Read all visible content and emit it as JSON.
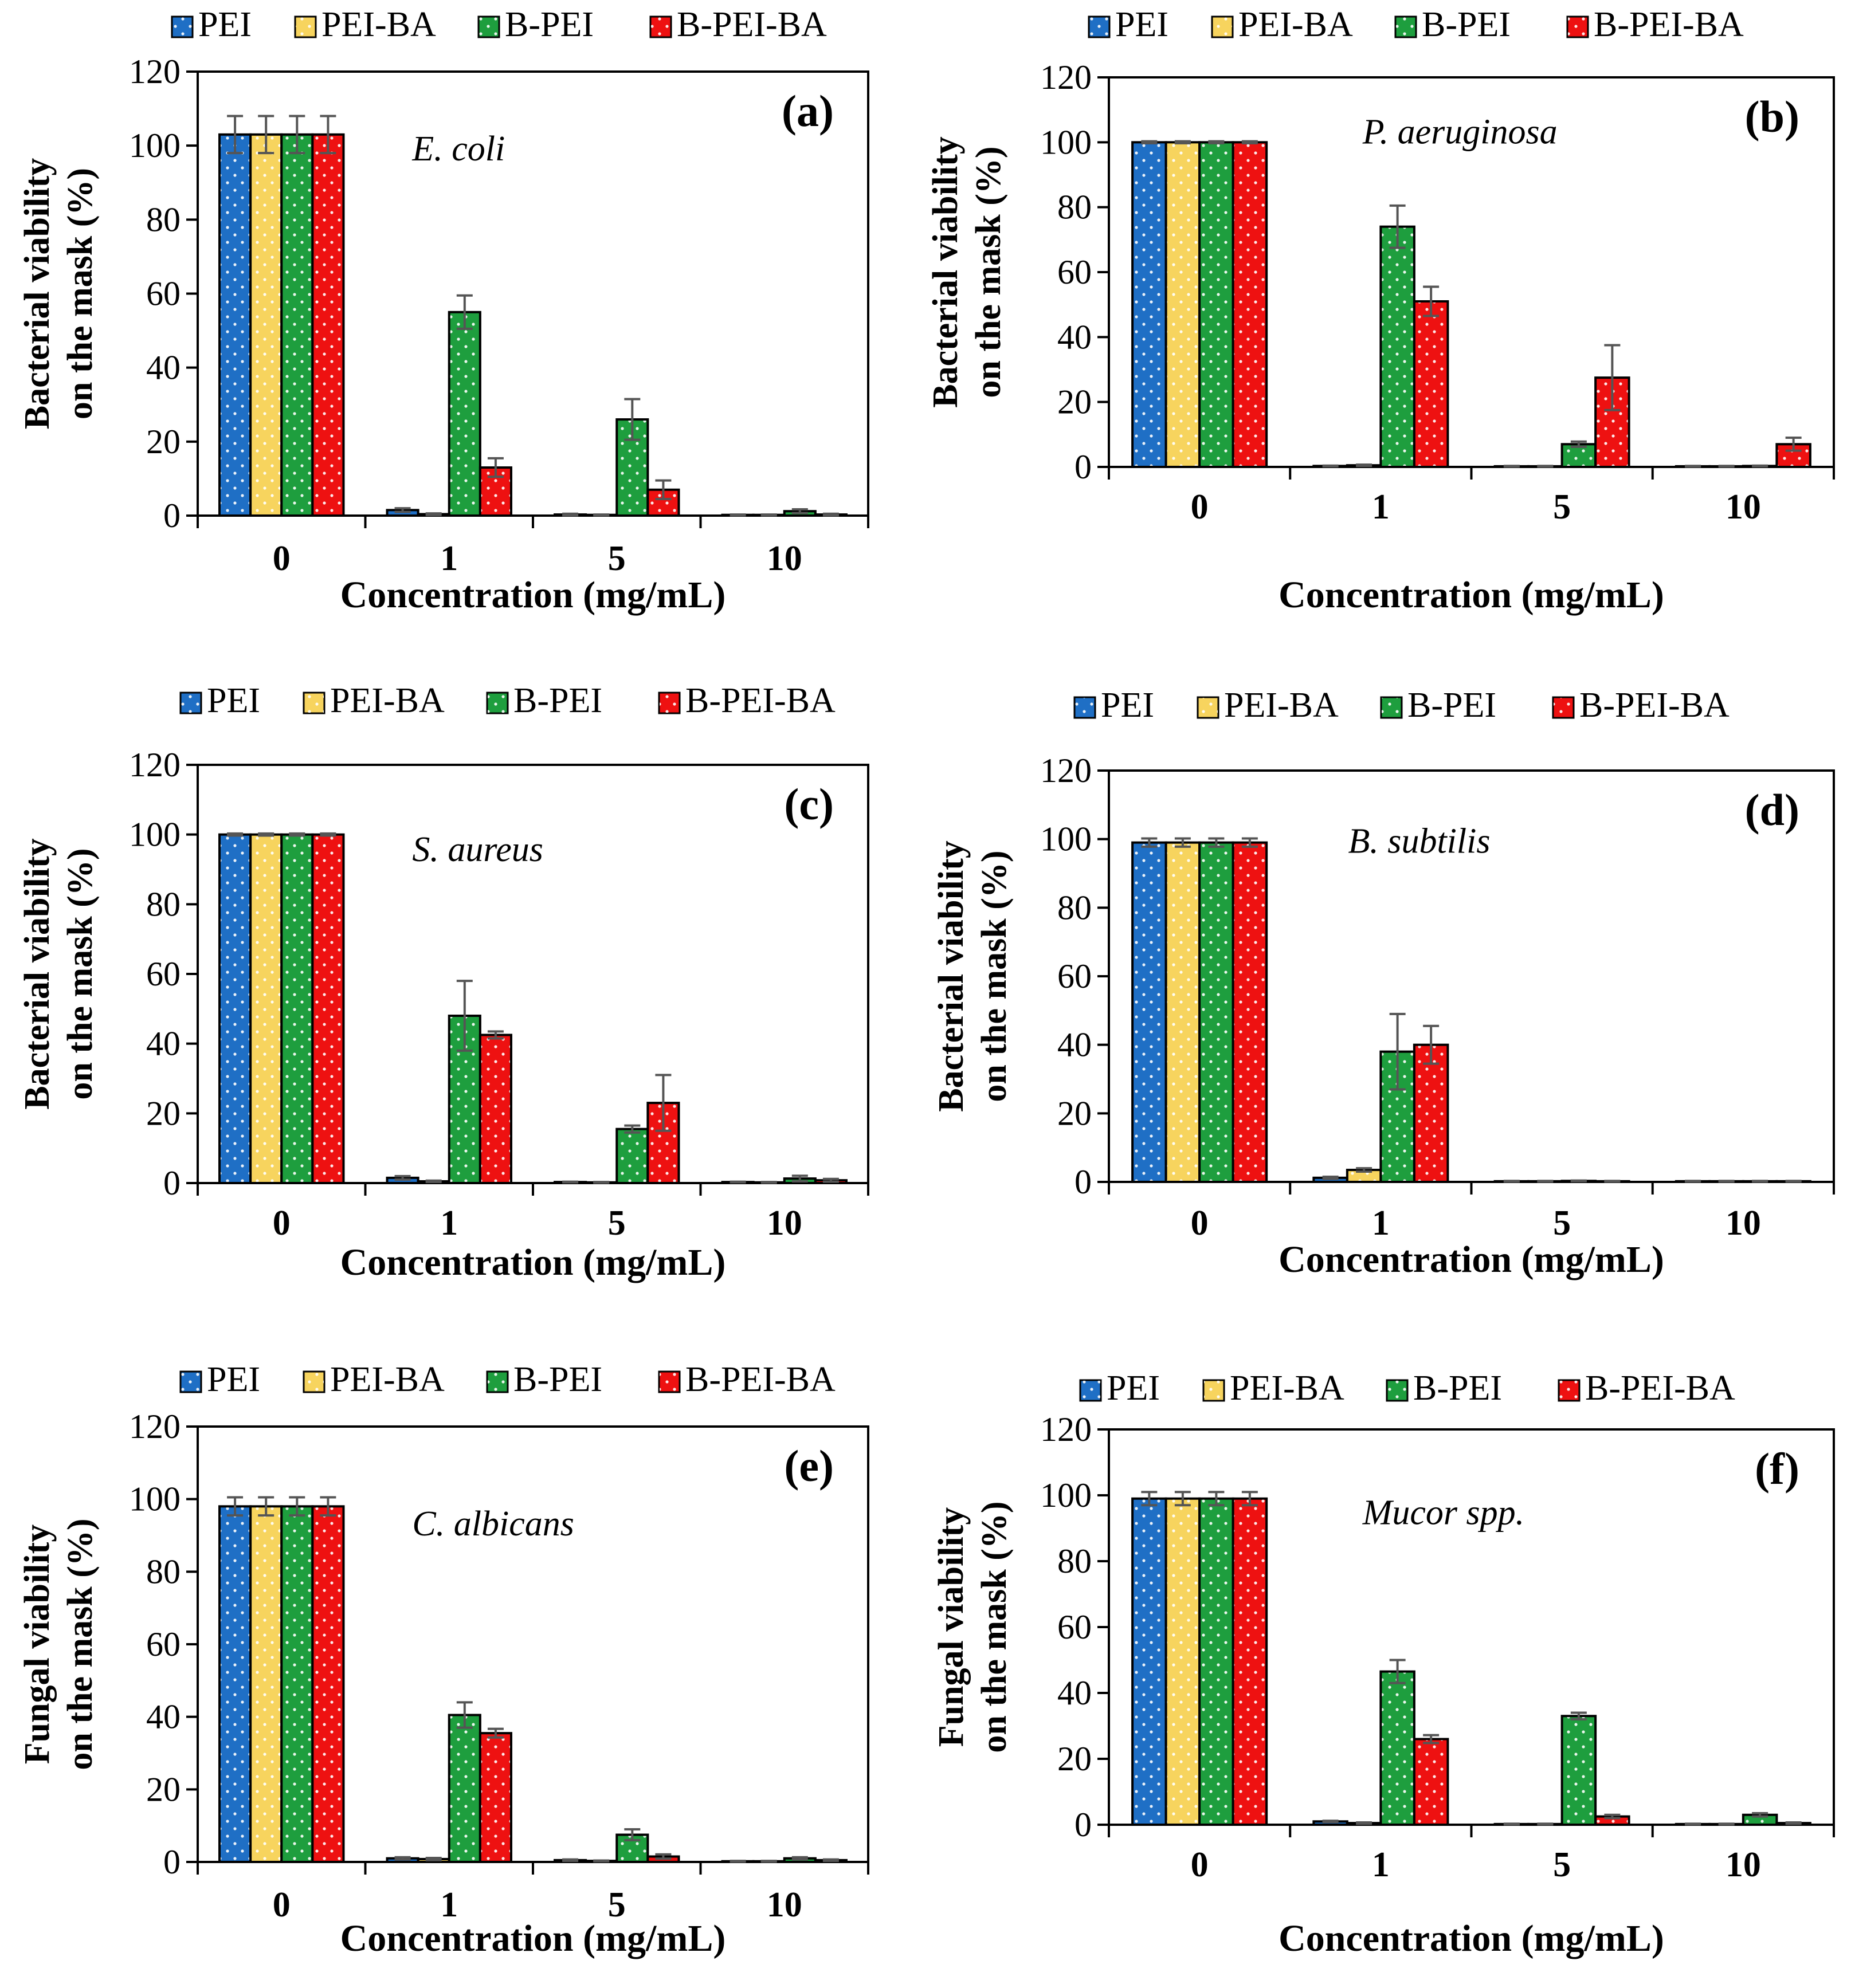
{
  "legend_labels": [
    "PEI",
    "PEI-BA",
    "B-PEI",
    "B-PEI-BA"
  ],
  "series_colors": [
    "#1f6fc5",
    "#f7d45e",
    "#1e9e3e",
    "#ee1111"
  ],
  "chart_data": [
    {
      "type": "bar",
      "panel_label": "(a)",
      "organism": "E. coli",
      "xlabel": "Concentration (mg/mL)",
      "ylabel": [
        "Bacterial viability",
        "on the mask (%)"
      ],
      "categories": [
        "0",
        "1",
        "5",
        "10"
      ],
      "ylim": [
        0,
        120
      ],
      "yticks": [
        0,
        20,
        40,
        60,
        80,
        100,
        120
      ],
      "series": [
        {
          "name": "PEI",
          "values": [
            103,
            1.5,
            0.3,
            0.2
          ],
          "errors": [
            5,
            0.5,
            0.2,
            0.1
          ]
        },
        {
          "name": "PEI-BA",
          "values": [
            103,
            0.4,
            0.2,
            0.2
          ],
          "errors": [
            5,
            0.2,
            0.1,
            0.1
          ]
        },
        {
          "name": "B-PEI",
          "values": [
            103,
            55,
            26,
            1.2
          ],
          "errors": [
            5,
            4.5,
            5.5,
            0.5
          ]
        },
        {
          "name": "B-PEI-BA",
          "values": [
            103,
            13,
            7,
            0.3
          ],
          "errors": [
            5,
            2.5,
            2.5,
            0.2
          ]
        }
      ]
    },
    {
      "type": "bar",
      "panel_label": "(b)",
      "organism": "P. aeruginosa",
      "xlabel": "Concentration (mg/mL)",
      "ylabel": [
        "Bacterial viability",
        "on the mask (%)"
      ],
      "categories": [
        "0",
        "1",
        "5",
        "10"
      ],
      "ylim": [
        0,
        120
      ],
      "yticks": [
        0,
        20,
        40,
        60,
        80,
        100,
        120
      ],
      "series": [
        {
          "name": "PEI",
          "values": [
            100,
            0.3,
            0.2,
            0.2
          ],
          "errors": [
            0.3,
            0.1,
            0.1,
            0.1
          ]
        },
        {
          "name": "PEI-BA",
          "values": [
            100,
            0.5,
            0.2,
            0.2
          ],
          "errors": [
            0.3,
            0.2,
            0.1,
            0.1
          ]
        },
        {
          "name": "B-PEI",
          "values": [
            100,
            74,
            7,
            0.3
          ],
          "errors": [
            0.3,
            6.5,
            0.8,
            0.1
          ]
        },
        {
          "name": "B-PEI-BA",
          "values": [
            100,
            51,
            27.5,
            7
          ],
          "errors": [
            0.3,
            4.5,
            10,
            2
          ]
        }
      ]
    },
    {
      "type": "bar",
      "panel_label": "(c)",
      "organism": "S. aureus",
      "xlabel": "Concentration (mg/mL)",
      "ylabel": [
        "Bacterial viability",
        "on the mask (%)"
      ],
      "categories": [
        "0",
        "1",
        "5",
        "10"
      ],
      "ylim": [
        0,
        120
      ],
      "yticks": [
        0,
        20,
        40,
        60,
        80,
        100,
        120
      ],
      "series": [
        {
          "name": "PEI",
          "values": [
            100,
            1.5,
            0.3,
            0.3
          ],
          "errors": [
            0.3,
            0.5,
            0.1,
            0.1
          ]
        },
        {
          "name": "PEI-BA",
          "values": [
            100,
            0.5,
            0.2,
            0.2
          ],
          "errors": [
            0.3,
            0.2,
            0.1,
            0.1
          ]
        },
        {
          "name": "B-PEI",
          "values": [
            100,
            48,
            15.5,
            1.3
          ],
          "errors": [
            0.3,
            10,
            1,
            0.8
          ]
        },
        {
          "name": "B-PEI-BA",
          "values": [
            100,
            42.5,
            23,
            0.8
          ],
          "errors": [
            0.3,
            1,
            8,
            0.4
          ]
        }
      ]
    },
    {
      "type": "bar",
      "panel_label": "(d)",
      "organism": "B. subtilis",
      "xlabel": "Concentration (mg/mL)",
      "ylabel": [
        "Bacterial viability",
        "on the mask (%)"
      ],
      "categories": [
        "0",
        "1",
        "5",
        "10"
      ],
      "ylim": [
        0,
        120
      ],
      "yticks": [
        0,
        20,
        40,
        60,
        80,
        100,
        120
      ],
      "series": [
        {
          "name": "PEI",
          "values": [
            99,
            1.2,
            0.2,
            0.2
          ],
          "errors": [
            1.2,
            0.3,
            0.1,
            0.1
          ]
        },
        {
          "name": "PEI-BA",
          "values": [
            99,
            3.5,
            0.2,
            0.2
          ],
          "errors": [
            1.2,
            0.5,
            0.1,
            0.1
          ]
        },
        {
          "name": "B-PEI",
          "values": [
            99,
            38,
            0.3,
            0.2
          ],
          "errors": [
            1.2,
            11,
            0.1,
            0.1
          ]
        },
        {
          "name": "B-PEI-BA",
          "values": [
            99,
            40,
            0.2,
            0.2
          ],
          "errors": [
            1.2,
            5.5,
            0.1,
            0.1
          ]
        }
      ]
    },
    {
      "type": "bar",
      "panel_label": "(e)",
      "organism": "C. albicans",
      "xlabel": "Concentration (mg/mL)",
      "ylabel": [
        "Fungal viability",
        "on the mask (%)"
      ],
      "categories": [
        "0",
        "1",
        "5",
        "10"
      ],
      "ylim": [
        0,
        120
      ],
      "yticks": [
        0,
        20,
        40,
        60,
        80,
        100,
        120
      ],
      "series": [
        {
          "name": "PEI",
          "values": [
            98,
            1,
            0.5,
            0.2
          ],
          "errors": [
            2.5,
            0.3,
            0.2,
            0.1
          ]
        },
        {
          "name": "PEI-BA",
          "values": [
            98,
            0.8,
            0.3,
            0.2
          ],
          "errors": [
            2.5,
            0.3,
            0.1,
            0.1
          ]
        },
        {
          "name": "B-PEI",
          "values": [
            98,
            40.5,
            7.5,
            1
          ],
          "errors": [
            2.5,
            3.5,
            1.5,
            0.3
          ]
        },
        {
          "name": "B-PEI-BA",
          "values": [
            98,
            35.5,
            1.5,
            0.5
          ],
          "errors": [
            2.5,
            1.2,
            0.6,
            0.2
          ]
        }
      ]
    },
    {
      "type": "bar",
      "panel_label": "(f)",
      "organism": "Mucor spp.",
      "xlabel": "Concentration (mg/mL)",
      "ylabel": [
        "Fungal viability",
        "on the mask (%)"
      ],
      "categories": [
        "0",
        "1",
        "5",
        "10"
      ],
      "ylim": [
        0,
        120
      ],
      "yticks": [
        0,
        20,
        40,
        60,
        80,
        100,
        120
      ],
      "series": [
        {
          "name": "PEI",
          "values": [
            99,
            1,
            0.2,
            0.2
          ],
          "errors": [
            2,
            0.2,
            0.1,
            0.1
          ]
        },
        {
          "name": "PEI-BA",
          "values": [
            99,
            0.5,
            0.2,
            0.2
          ],
          "errors": [
            2,
            0.2,
            0.1,
            0.1
          ]
        },
        {
          "name": "B-PEI",
          "values": [
            99,
            46.5,
            33,
            3
          ],
          "errors": [
            2,
            3.5,
            1,
            0.5
          ]
        },
        {
          "name": "B-PEI-BA",
          "values": [
            99,
            26,
            2.5,
            0.5
          ],
          "errors": [
            2,
            1.2,
            0.5,
            0.2
          ]
        }
      ]
    }
  ]
}
